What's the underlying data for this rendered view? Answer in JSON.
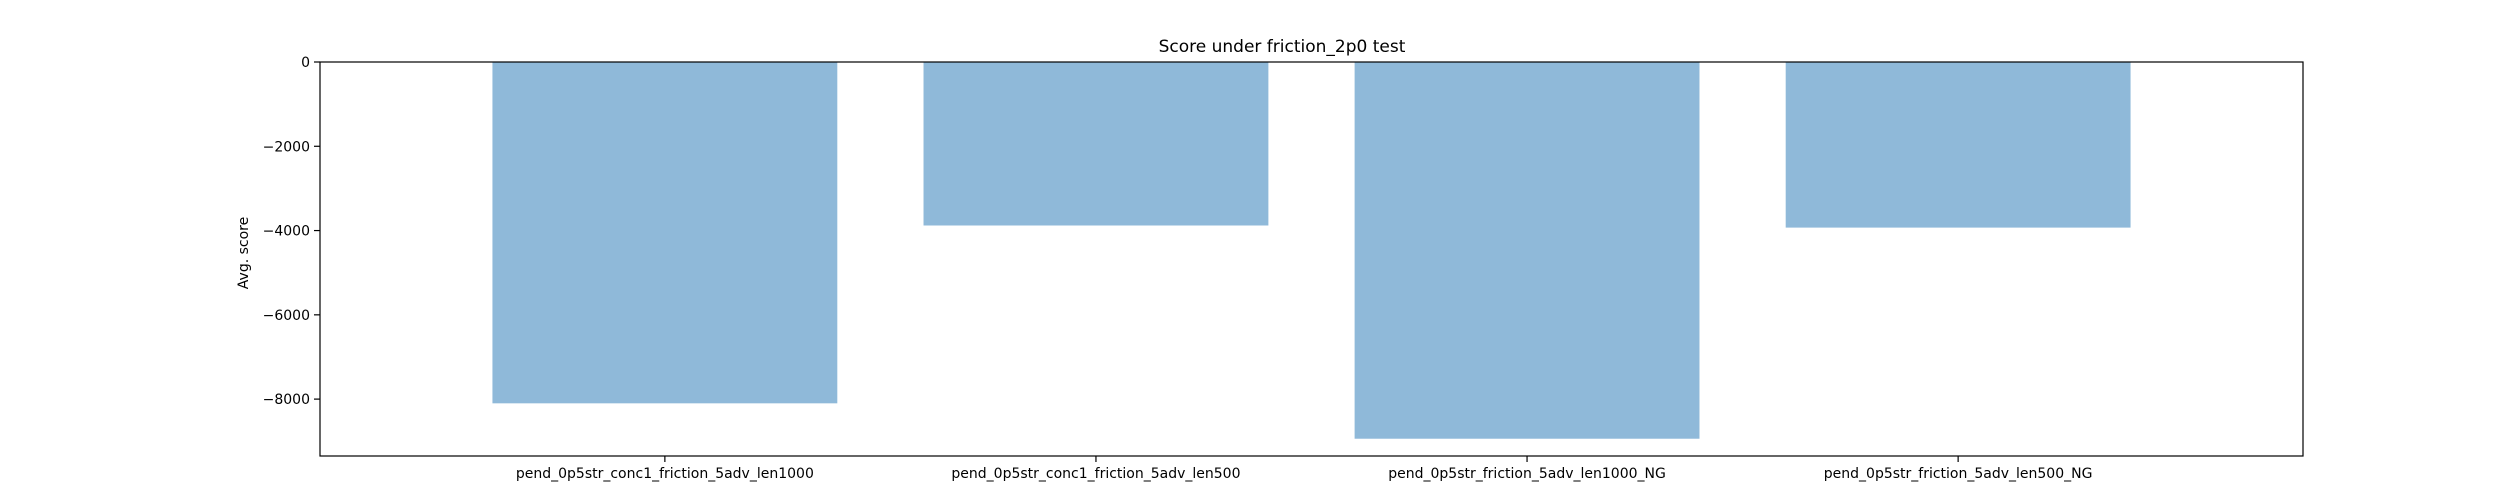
{
  "chart_data": {
    "type": "bar",
    "title": "Score under friction_2p0 test",
    "xlabel": "",
    "ylabel": "Avg. score",
    "categories": [
      "pend_0p5str_conc1_friction_5adv_len1000",
      "pend_0p5str_conc1_friction_5adv_len500",
      "pend_0p5str_friction_5adv_len1000_NG",
      "pend_0p5str_friction_5adv_len500_NG"
    ],
    "values": [
      -8100,
      -3880,
      -8940,
      -3930
    ],
    "ylim": [
      -9350,
      0
    ],
    "yticks": [
      0,
      -2000,
      -4000,
      -6000,
      -8000
    ],
    "ytick_labels": [
      "0",
      "−2000",
      "−4000",
      "−6000",
      "−8000"
    ],
    "bar_color": "#8fb9d9",
    "grid": false,
    "legend": "none"
  }
}
